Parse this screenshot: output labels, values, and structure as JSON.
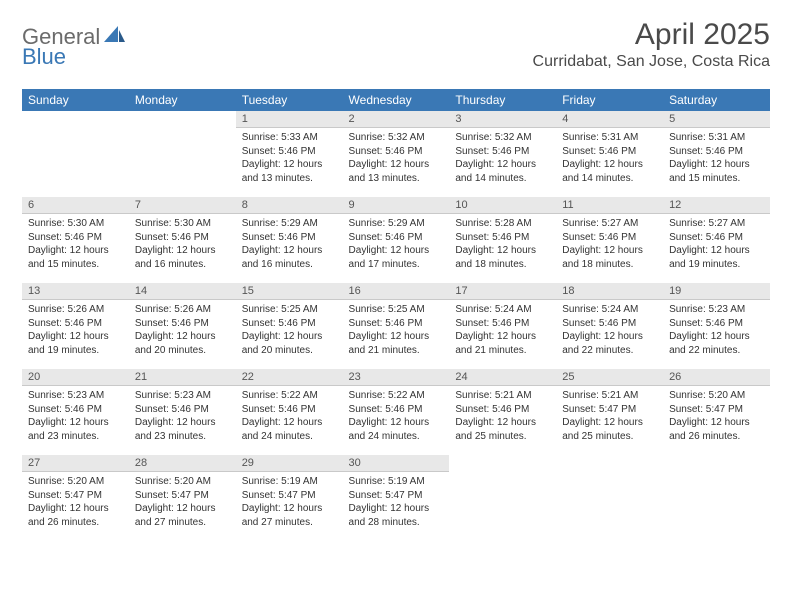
{
  "logo": {
    "text1": "General",
    "text2": "Blue"
  },
  "title": "April 2025",
  "location": "Curridabat, San Jose, Costa Rica",
  "colors": {
    "header_bg": "#3a78b5",
    "header_text": "#ffffff",
    "daynum_bg": "#e8e8e8",
    "daynum_text": "#555555",
    "body_text": "#333333",
    "page_bg": "#ffffff",
    "logo_gray": "#6b6b6b",
    "logo_blue": "#3a78b5"
  },
  "weekdays": [
    "Sunday",
    "Monday",
    "Tuesday",
    "Wednesday",
    "Thursday",
    "Friday",
    "Saturday"
  ],
  "weeks": [
    [
      {
        "empty": true
      },
      {
        "empty": true
      },
      {
        "day": "1",
        "sunrise": "Sunrise: 5:33 AM",
        "sunset": "Sunset: 5:46 PM",
        "daylight1": "Daylight: 12 hours",
        "daylight2": "and 13 minutes."
      },
      {
        "day": "2",
        "sunrise": "Sunrise: 5:32 AM",
        "sunset": "Sunset: 5:46 PM",
        "daylight1": "Daylight: 12 hours",
        "daylight2": "and 13 minutes."
      },
      {
        "day": "3",
        "sunrise": "Sunrise: 5:32 AM",
        "sunset": "Sunset: 5:46 PM",
        "daylight1": "Daylight: 12 hours",
        "daylight2": "and 14 minutes."
      },
      {
        "day": "4",
        "sunrise": "Sunrise: 5:31 AM",
        "sunset": "Sunset: 5:46 PM",
        "daylight1": "Daylight: 12 hours",
        "daylight2": "and 14 minutes."
      },
      {
        "day": "5",
        "sunrise": "Sunrise: 5:31 AM",
        "sunset": "Sunset: 5:46 PM",
        "daylight1": "Daylight: 12 hours",
        "daylight2": "and 15 minutes."
      }
    ],
    [
      {
        "day": "6",
        "sunrise": "Sunrise: 5:30 AM",
        "sunset": "Sunset: 5:46 PM",
        "daylight1": "Daylight: 12 hours",
        "daylight2": "and 15 minutes."
      },
      {
        "day": "7",
        "sunrise": "Sunrise: 5:30 AM",
        "sunset": "Sunset: 5:46 PM",
        "daylight1": "Daylight: 12 hours",
        "daylight2": "and 16 minutes."
      },
      {
        "day": "8",
        "sunrise": "Sunrise: 5:29 AM",
        "sunset": "Sunset: 5:46 PM",
        "daylight1": "Daylight: 12 hours",
        "daylight2": "and 16 minutes."
      },
      {
        "day": "9",
        "sunrise": "Sunrise: 5:29 AM",
        "sunset": "Sunset: 5:46 PM",
        "daylight1": "Daylight: 12 hours",
        "daylight2": "and 17 minutes."
      },
      {
        "day": "10",
        "sunrise": "Sunrise: 5:28 AM",
        "sunset": "Sunset: 5:46 PM",
        "daylight1": "Daylight: 12 hours",
        "daylight2": "and 18 minutes."
      },
      {
        "day": "11",
        "sunrise": "Sunrise: 5:27 AM",
        "sunset": "Sunset: 5:46 PM",
        "daylight1": "Daylight: 12 hours",
        "daylight2": "and 18 minutes."
      },
      {
        "day": "12",
        "sunrise": "Sunrise: 5:27 AM",
        "sunset": "Sunset: 5:46 PM",
        "daylight1": "Daylight: 12 hours",
        "daylight2": "and 19 minutes."
      }
    ],
    [
      {
        "day": "13",
        "sunrise": "Sunrise: 5:26 AM",
        "sunset": "Sunset: 5:46 PM",
        "daylight1": "Daylight: 12 hours",
        "daylight2": "and 19 minutes."
      },
      {
        "day": "14",
        "sunrise": "Sunrise: 5:26 AM",
        "sunset": "Sunset: 5:46 PM",
        "daylight1": "Daylight: 12 hours",
        "daylight2": "and 20 minutes."
      },
      {
        "day": "15",
        "sunrise": "Sunrise: 5:25 AM",
        "sunset": "Sunset: 5:46 PM",
        "daylight1": "Daylight: 12 hours",
        "daylight2": "and 20 minutes."
      },
      {
        "day": "16",
        "sunrise": "Sunrise: 5:25 AM",
        "sunset": "Sunset: 5:46 PM",
        "daylight1": "Daylight: 12 hours",
        "daylight2": "and 21 minutes."
      },
      {
        "day": "17",
        "sunrise": "Sunrise: 5:24 AM",
        "sunset": "Sunset: 5:46 PM",
        "daylight1": "Daylight: 12 hours",
        "daylight2": "and 21 minutes."
      },
      {
        "day": "18",
        "sunrise": "Sunrise: 5:24 AM",
        "sunset": "Sunset: 5:46 PM",
        "daylight1": "Daylight: 12 hours",
        "daylight2": "and 22 minutes."
      },
      {
        "day": "19",
        "sunrise": "Sunrise: 5:23 AM",
        "sunset": "Sunset: 5:46 PM",
        "daylight1": "Daylight: 12 hours",
        "daylight2": "and 22 minutes."
      }
    ],
    [
      {
        "day": "20",
        "sunrise": "Sunrise: 5:23 AM",
        "sunset": "Sunset: 5:46 PM",
        "daylight1": "Daylight: 12 hours",
        "daylight2": "and 23 minutes."
      },
      {
        "day": "21",
        "sunrise": "Sunrise: 5:23 AM",
        "sunset": "Sunset: 5:46 PM",
        "daylight1": "Daylight: 12 hours",
        "daylight2": "and 23 minutes."
      },
      {
        "day": "22",
        "sunrise": "Sunrise: 5:22 AM",
        "sunset": "Sunset: 5:46 PM",
        "daylight1": "Daylight: 12 hours",
        "daylight2": "and 24 minutes."
      },
      {
        "day": "23",
        "sunrise": "Sunrise: 5:22 AM",
        "sunset": "Sunset: 5:46 PM",
        "daylight1": "Daylight: 12 hours",
        "daylight2": "and 24 minutes."
      },
      {
        "day": "24",
        "sunrise": "Sunrise: 5:21 AM",
        "sunset": "Sunset: 5:46 PM",
        "daylight1": "Daylight: 12 hours",
        "daylight2": "and 25 minutes."
      },
      {
        "day": "25",
        "sunrise": "Sunrise: 5:21 AM",
        "sunset": "Sunset: 5:47 PM",
        "daylight1": "Daylight: 12 hours",
        "daylight2": "and 25 minutes."
      },
      {
        "day": "26",
        "sunrise": "Sunrise: 5:20 AM",
        "sunset": "Sunset: 5:47 PM",
        "daylight1": "Daylight: 12 hours",
        "daylight2": "and 26 minutes."
      }
    ],
    [
      {
        "day": "27",
        "sunrise": "Sunrise: 5:20 AM",
        "sunset": "Sunset: 5:47 PM",
        "daylight1": "Daylight: 12 hours",
        "daylight2": "and 26 minutes."
      },
      {
        "day": "28",
        "sunrise": "Sunrise: 5:20 AM",
        "sunset": "Sunset: 5:47 PM",
        "daylight1": "Daylight: 12 hours",
        "daylight2": "and 27 minutes."
      },
      {
        "day": "29",
        "sunrise": "Sunrise: 5:19 AM",
        "sunset": "Sunset: 5:47 PM",
        "daylight1": "Daylight: 12 hours",
        "daylight2": "and 27 minutes."
      },
      {
        "day": "30",
        "sunrise": "Sunrise: 5:19 AM",
        "sunset": "Sunset: 5:47 PM",
        "daylight1": "Daylight: 12 hours",
        "daylight2": "and 28 minutes."
      },
      {
        "empty": true
      },
      {
        "empty": true
      },
      {
        "empty": true
      }
    ]
  ]
}
